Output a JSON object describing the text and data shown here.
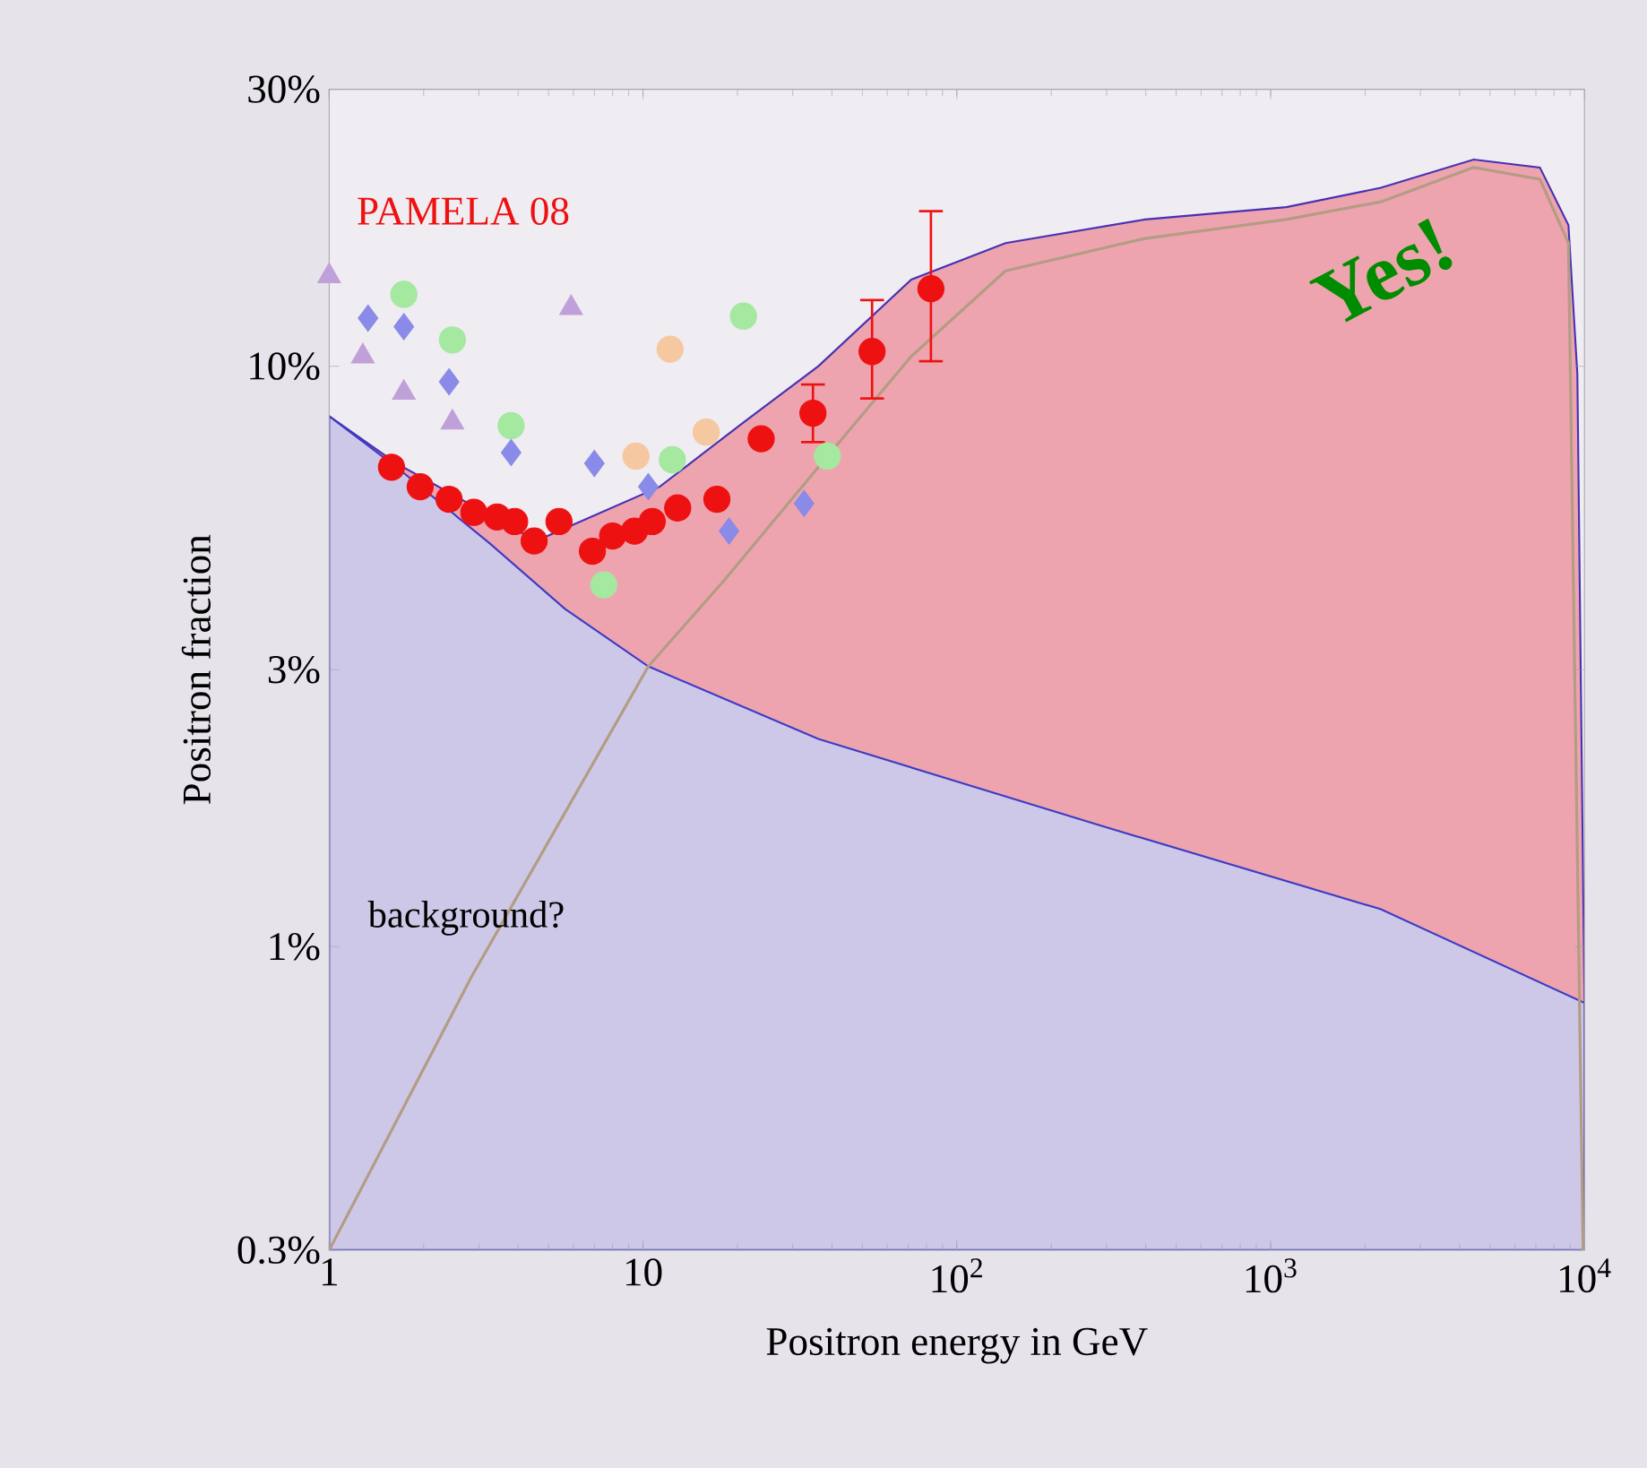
{
  "chart_data": {
    "type": "scatter",
    "xlabel": "Positron energy in GeV",
    "ylabel": "Positron fraction",
    "log": "xy",
    "xlim": [
      1,
      10000
    ],
    "ylim": [
      0.3,
      30
    ],
    "xticks": [
      1,
      10,
      {
        "value": 100,
        "label": "10$^{2}$"
      },
      {
        "value": 1000,
        "label": "10$^{3}$"
      },
      {
        "value": 10000,
        "label": "10$^{4}$"
      }
    ],
    "yticks": [
      {
        "value": 0.3,
        "label": "0.3%"
      },
      {
        "value": 1,
        "label": "1%"
      },
      {
        "value": 3,
        "label": "3%"
      },
      {
        "value": 10,
        "label": "10%"
      },
      {
        "value": 30,
        "label": "30%"
      }
    ],
    "annotations": [
      "Yes!",
      "background?"
    ],
    "series": [
      {
        "type": "area",
        "color": "#eea4ae",
        "x": [
          1,
          1.64,
          4.57,
          11.3,
          20.9,
          36.2,
          71.6,
          143,
          398,
          1122,
          2245,
          4436,
          7210,
          8890,
          9490,
          10000
        ],
        "values": [
          8.2,
          6.8,
          5.0,
          6.2,
          8.0,
          10.0,
          14.1,
          16.3,
          17.9,
          18.8,
          20.3,
          22.7,
          22.0,
          17.5,
          9.7,
          0.8
        ]
      },
      {
        "type": "area",
        "color": "#cdc8e8",
        "x": [
          1,
          1.64,
          3.25,
          5.64,
          10.4,
          36.2,
          283,
          2245,
          10000
        ],
        "values": [
          8.2,
          6.7,
          4.95,
          3.82,
          3.04,
          2.28,
          1.62,
          1.16,
          0.8
        ]
      },
      {
        "type": "line",
        "color": "#b39c84",
        "x": [
          1,
          2.85,
          10.4,
          18.1,
          36.2,
          71.6,
          143,
          398,
          1122,
          2245,
          4436,
          7210,
          8890,
          9900
        ],
        "values": [
          0.3,
          0.89,
          3.04,
          4.27,
          6.7,
          10.4,
          14.6,
          16.6,
          17.9,
          19.2,
          22.0,
          21.0,
          16.3,
          0.3
        ]
      },
      {
        "color": "#a5e8a0",
        "marker": "circle",
        "x": [
          1.73,
          2.47,
          3.8,
          7.5,
          12.4,
          20.9,
          38.7
        ],
        "values": [
          13.3,
          11.1,
          7.9,
          4.2,
          6.9,
          12.2,
          7.0
        ]
      },
      {
        "color": "#8a8ae8",
        "marker": "diamond",
        "x": [
          1.33,
          1.73,
          2.41,
          3.8,
          7.0,
          10.4,
          18.8,
          32.6
        ],
        "values": [
          12.1,
          11.7,
          9.4,
          7.1,
          6.8,
          6.2,
          5.2,
          5.8
        ]
      },
      {
        "color": "#c0a0d8",
        "marker": "triangle",
        "x": [
          1,
          1.28,
          1.73,
          2.47,
          5.9
        ],
        "values": [
          14.3,
          10.4,
          9.0,
          8.0,
          12.6
        ]
      },
      {
        "color": "#f5c8a0",
        "marker": "circle",
        "x": [
          12.2,
          9.5,
          15.9
        ],
        "values": [
          10.7,
          7.0,
          7.7
        ]
      },
      {
        "name": "PAMELA 08",
        "color": "#ee1111",
        "marker": "circle",
        "x": [
          1.58,
          1.95,
          2.41,
          2.89,
          3.43,
          3.9,
          4.5,
          5.4,
          6.9,
          8.0,
          9.4,
          10.7,
          12.9,
          17.2,
          23.8,
          34.8,
          53.7,
          82.7
        ],
        "values": [
          6.7,
          6.2,
          5.9,
          5.6,
          5.5,
          5.4,
          5.0,
          5.4,
          4.8,
          5.1,
          5.2,
          5.4,
          5.7,
          5.9,
          7.5,
          8.3,
          10.6,
          13.6
        ],
        "errors": [
          null,
          null,
          null,
          null,
          null,
          null,
          null,
          null,
          null,
          null,
          null,
          null,
          null,
          null,
          null,
          [
            7.4,
            9.3
          ],
          [
            8.8,
            13.0
          ],
          [
            10.2,
            18.5
          ]
        ]
      }
    ]
  }
}
